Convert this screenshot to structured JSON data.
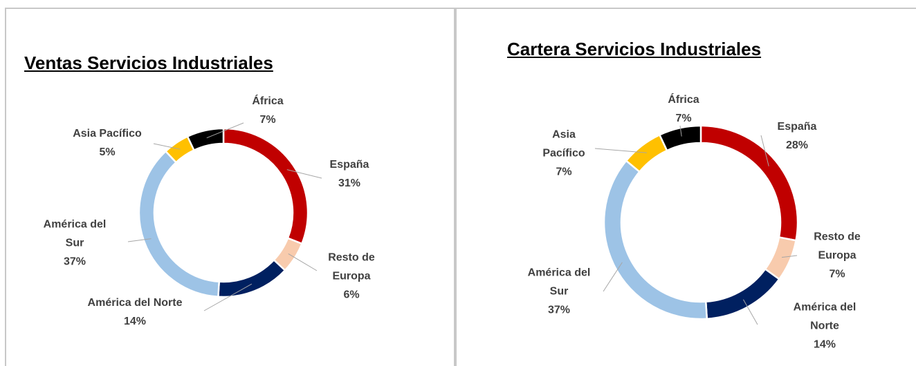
{
  "chart_data": [
    {
      "type": "pie",
      "title": "Ventas Servicios Industriales",
      "categories": [
        "España",
        "Resto de Europa",
        "América del Norte",
        "América del Sur",
        "Asia Pacífico",
        "África"
      ],
      "values": [
        31,
        6,
        14,
        37,
        5,
        7
      ],
      "value_labels": [
        "31%",
        "6%",
        "14%",
        "37%",
        "5%",
        "7%"
      ],
      "colors": [
        "#c00000",
        "#f8cbad",
        "#002060",
        "#9dc3e6",
        "#ffc000",
        "#000000"
      ]
    },
    {
      "type": "pie",
      "title": "Cartera Servicios Industriales",
      "categories": [
        "España",
        "Resto de Europa",
        "América del Norte",
        "América del Sur",
        "Asia Pacífico",
        "África"
      ],
      "values": [
        28,
        7,
        14,
        37,
        7,
        7
      ],
      "value_labels": [
        "28%",
        "7%",
        "14%",
        "37%",
        "7%",
        "7%"
      ],
      "colors": [
        "#c00000",
        "#f8cbad",
        "#002060",
        "#9dc3e6",
        "#ffc000",
        "#000000"
      ]
    }
  ]
}
